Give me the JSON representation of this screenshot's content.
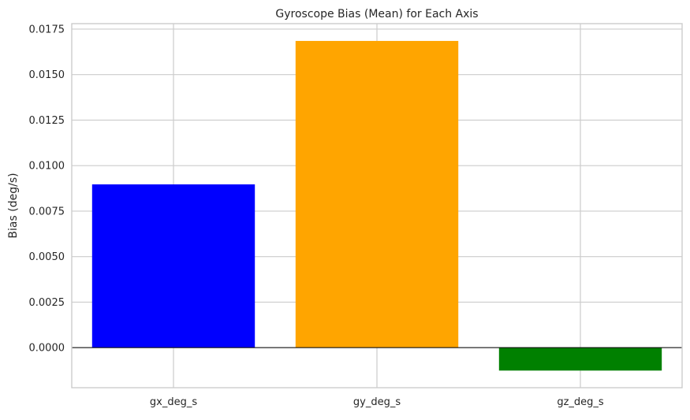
{
  "chart_data": {
    "type": "bar",
    "title": "Gyroscope Bias (Mean) for Each Axis",
    "xlabel": "",
    "ylabel": "Bias (deg/s)",
    "categories": [
      "gx_deg_s",
      "gy_deg_s",
      "gz_deg_s"
    ],
    "values": [
      0.00897,
      0.01685,
      -0.00126
    ],
    "colors": [
      "#0000ff",
      "#ffa500",
      "#008000"
    ],
    "ylim": [
      -0.0022,
      0.0178
    ],
    "yticks": [
      0.0,
      0.0025,
      0.005,
      0.0075,
      0.01,
      0.0125,
      0.015,
      0.0175
    ],
    "ytick_labels": [
      "0.0000",
      "0.0025",
      "0.0050",
      "0.0075",
      "0.0100",
      "0.0125",
      "0.0150",
      "0.0175"
    ],
    "grid": true,
    "zero_line": true,
    "legend": "none"
  }
}
